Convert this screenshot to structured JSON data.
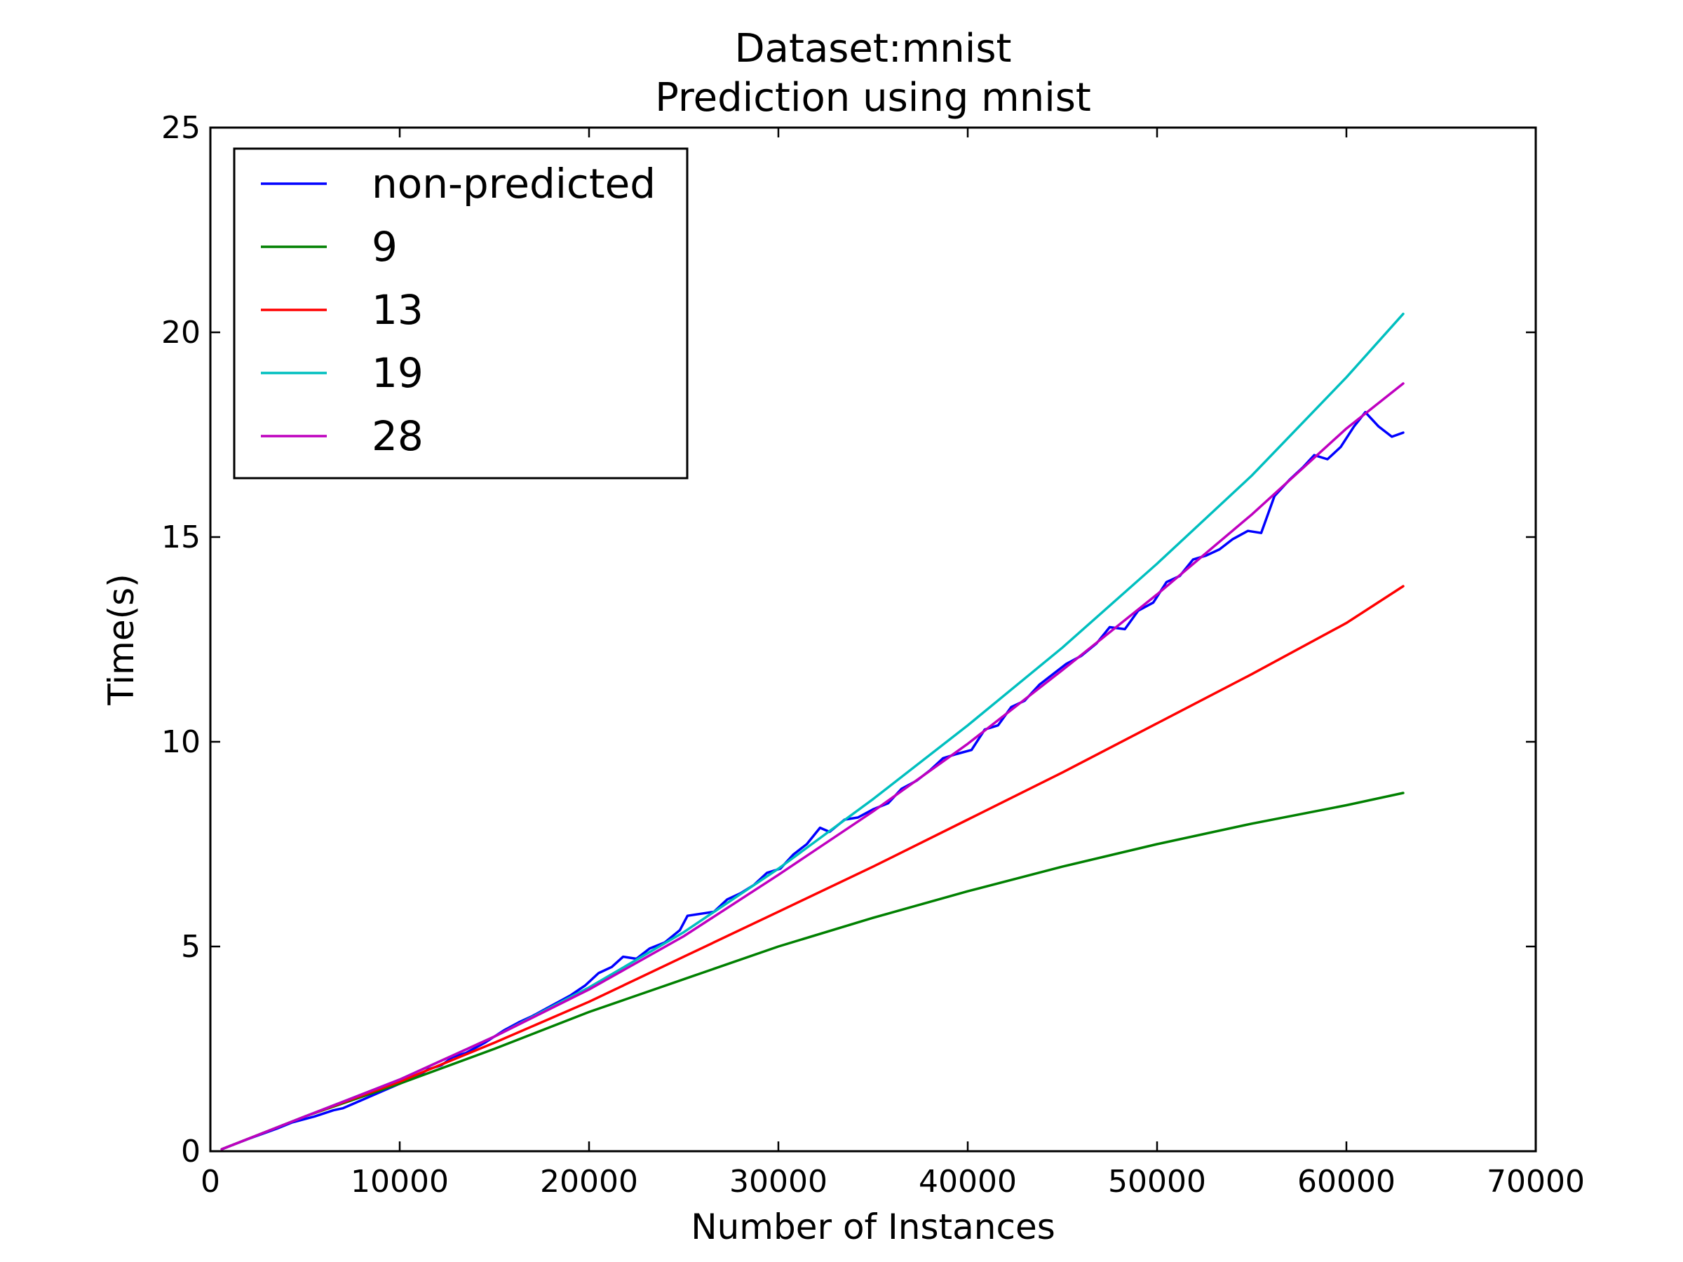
{
  "chart_data": {
    "type": "line",
    "title": "Dataset:mnist",
    "subtitle": "Prediction using mnist",
    "xlabel": "Number of Instances",
    "ylabel": "Time(s)",
    "xlim": [
      0,
      70000
    ],
    "ylim": [
      0,
      25
    ],
    "xticks": [
      0,
      10000,
      20000,
      30000,
      40000,
      50000,
      60000,
      70000
    ],
    "yticks": [
      0,
      5,
      10,
      15,
      20,
      25
    ],
    "grid": false,
    "legend_position": "top-left",
    "series": [
      {
        "name": "non-predicted",
        "color": "#0000ff",
        "x": [
          600,
          2000,
          3500,
          4300,
          5500,
          6500,
          7000,
          8000,
          9000,
          10000,
          11000,
          11500,
          12200,
          12800,
          13500,
          14500,
          15500,
          16300,
          17000,
          18000,
          19000,
          19800,
          20500,
          21200,
          21800,
          22500,
          23200,
          24000,
          24800,
          25200,
          25900,
          26600,
          27300,
          28000,
          28700,
          29400,
          30100,
          30800,
          31500,
          32200,
          32700,
          33500,
          34200,
          35000,
          35800,
          36500,
          37300,
          38000,
          38700,
          39400,
          40200,
          40900,
          41600,
          42300,
          43000,
          43800,
          44500,
          45200,
          46000,
          46800,
          47500,
          48300,
          49000,
          49800,
          50500,
          51200,
          51900,
          52600,
          53300,
          54000,
          54800,
          55500,
          56200,
          57000,
          57700,
          58300,
          59000,
          59700,
          60400,
          61000,
          61700,
          62400,
          63000
        ],
        "y": [
          0.05,
          0.3,
          0.55,
          0.7,
          0.85,
          1.0,
          1.05,
          1.25,
          1.45,
          1.65,
          1.85,
          2.0,
          2.1,
          2.3,
          2.4,
          2.65,
          2.95,
          3.15,
          3.3,
          3.55,
          3.8,
          4.05,
          4.35,
          4.5,
          4.75,
          4.7,
          4.95,
          5.1,
          5.4,
          5.75,
          5.8,
          5.85,
          6.15,
          6.3,
          6.5,
          6.8,
          6.9,
          7.25,
          7.5,
          7.9,
          7.8,
          8.1,
          8.15,
          8.35,
          8.5,
          8.85,
          9.05,
          9.3,
          9.6,
          9.7,
          9.8,
          10.3,
          10.4,
          10.85,
          11.0,
          11.4,
          11.65,
          11.9,
          12.1,
          12.4,
          12.8,
          12.75,
          13.2,
          13.4,
          13.9,
          14.05,
          14.45,
          14.55,
          14.7,
          14.95,
          15.15,
          15.1,
          16.0,
          16.4,
          16.7,
          17.0,
          16.9,
          17.2,
          17.7,
          18.05,
          17.7,
          17.45,
          17.55
        ]
      },
      {
        "name": "9",
        "color": "#008000",
        "x": [
          600,
          5000,
          10000,
          15000,
          20000,
          25000,
          30000,
          35000,
          40000,
          45000,
          50000,
          55000,
          60000,
          63000
        ],
        "y": [
          0.05,
          0.85,
          1.65,
          2.5,
          3.4,
          4.2,
          5.0,
          5.7,
          6.35,
          6.95,
          7.5,
          8.0,
          8.45,
          8.75
        ]
      },
      {
        "name": "13",
        "color": "#ff0000",
        "x": [
          600,
          5000,
          10000,
          15000,
          20000,
          25000,
          30000,
          35000,
          40000,
          45000,
          50000,
          55000,
          60000,
          63000
        ],
        "y": [
          0.05,
          0.85,
          1.7,
          2.65,
          3.65,
          4.75,
          5.85,
          6.95,
          8.1,
          9.25,
          10.45,
          11.65,
          12.9,
          13.8
        ]
      },
      {
        "name": "19",
        "color": "#00bfbf",
        "x": [
          600,
          5000,
          10000,
          15000,
          20000,
          25000,
          30000,
          35000,
          40000,
          45000,
          50000,
          55000,
          60000,
          63000
        ],
        "y": [
          0.05,
          0.85,
          1.75,
          2.8,
          4.0,
          5.35,
          6.9,
          8.6,
          10.4,
          12.3,
          14.35,
          16.5,
          18.9,
          20.45
        ]
      },
      {
        "name": "28",
        "color": "#bf00bf",
        "x": [
          600,
          5000,
          10000,
          15000,
          20000,
          25000,
          30000,
          35000,
          40000,
          45000,
          50000,
          55000,
          60000,
          63000
        ],
        "y": [
          0.05,
          0.85,
          1.75,
          2.8,
          3.95,
          5.25,
          6.75,
          8.3,
          9.95,
          11.75,
          13.6,
          15.55,
          17.65,
          18.75
        ]
      }
    ]
  }
}
